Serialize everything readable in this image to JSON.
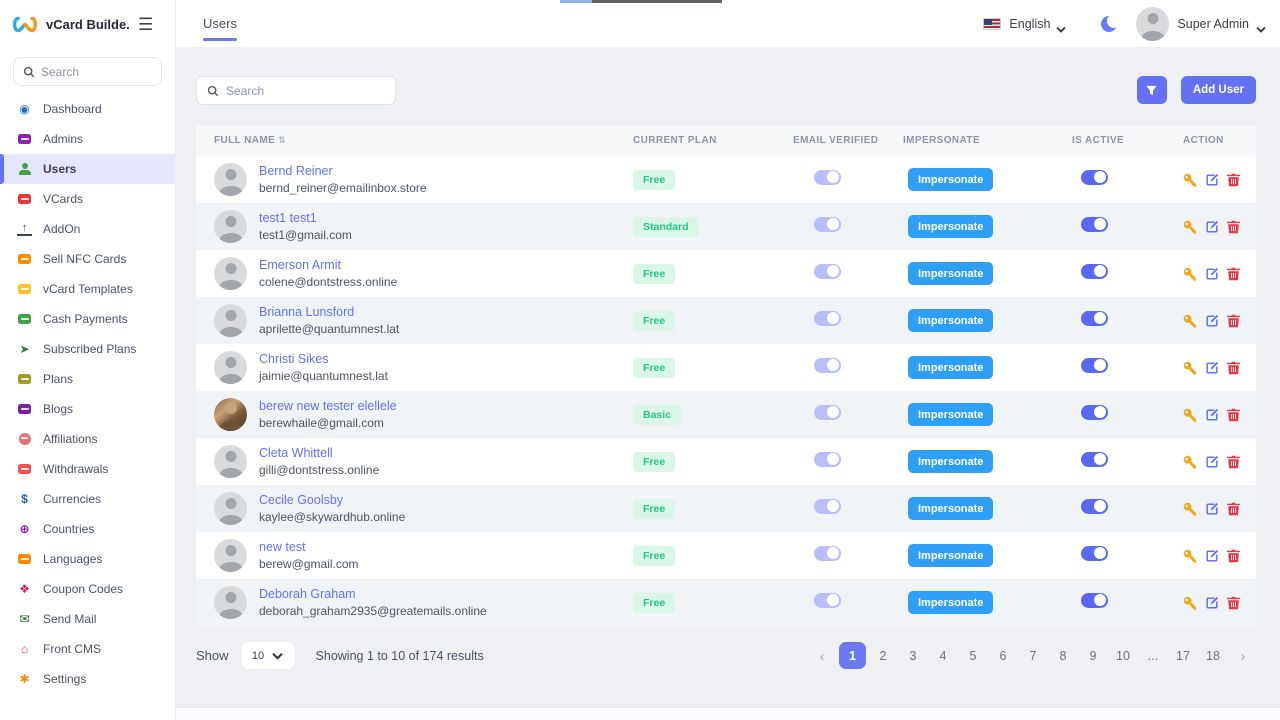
{
  "brand": {
    "title": "vCard Builde...",
    "logo": "infinity-logo"
  },
  "topnav": {
    "active_tab": "Users",
    "language": "English",
    "user_name": "Super Admin"
  },
  "sidebar": {
    "search_placeholder": "Search",
    "items": [
      {
        "label": "Dashboard",
        "icon": "dashboard-icon",
        "style": "glyph",
        "glyph": "◉",
        "color": "#1a6fc4",
        "active": false
      },
      {
        "label": "Admins",
        "icon": "admins-icon",
        "style": "chip",
        "glyph": "",
        "color": "#8e24aa",
        "active": false
      },
      {
        "label": "Users",
        "icon": "users-icon",
        "style": "person",
        "glyph": "",
        "color": "#43a047",
        "active": true
      },
      {
        "label": "VCards",
        "icon": "vcards-icon",
        "style": "chip",
        "glyph": "",
        "color": "#e53935",
        "active": false
      },
      {
        "label": "AddOn",
        "icon": "addon-icon",
        "style": "upload",
        "glyph": "↑",
        "color": "#37474f",
        "active": false
      },
      {
        "label": "Sell NFC Cards",
        "icon": "sell-nfc-cards-icon",
        "style": "chip",
        "glyph": "",
        "color": "#fb8c00",
        "active": false
      },
      {
        "label": "vCard Templates",
        "icon": "vcard-templates-icon",
        "style": "chip",
        "glyph": "",
        "color": "#f9c22e",
        "active": false
      },
      {
        "label": "Cash Payments",
        "icon": "cash-payments-icon",
        "style": "chip",
        "glyph": "",
        "color": "#43a047",
        "active": false
      },
      {
        "label": "Subscribed Plans",
        "icon": "subscribed-plans-icon",
        "style": "glyph",
        "glyph": "➤",
        "color": "#2e7d32",
        "active": false
      },
      {
        "label": "Plans",
        "icon": "plans-icon",
        "style": "chip",
        "glyph": "",
        "color": "#9e9d24",
        "active": false
      },
      {
        "label": "Blogs",
        "icon": "blogs-icon",
        "style": "chip",
        "glyph": "",
        "color": "#7b1fa2",
        "active": false
      },
      {
        "label": "Affiliations",
        "icon": "affiliations-icon",
        "style": "chip-round",
        "glyph": "",
        "color": "#e57373",
        "active": false
      },
      {
        "label": "Withdrawals",
        "icon": "withdrawals-icon",
        "style": "chip",
        "glyph": "",
        "color": "#ef5350",
        "active": false
      },
      {
        "label": "Currencies",
        "icon": "currencies-icon",
        "style": "glyph",
        "glyph": "$",
        "color": "#1565c0",
        "active": false
      },
      {
        "label": "Countries",
        "icon": "countries-icon",
        "style": "glyph",
        "glyph": "⊕",
        "color": "#7b1fa2",
        "active": false
      },
      {
        "label": "Languages",
        "icon": "languages-icon",
        "style": "chip",
        "glyph": "",
        "color": "#fb8c00",
        "active": false
      },
      {
        "label": "Coupon Codes",
        "icon": "coupon-codes-icon",
        "style": "glyph",
        "glyph": "❖",
        "color": "#d81b60",
        "active": false
      },
      {
        "label": "Send Mail",
        "icon": "send-mail-icon",
        "style": "glyph",
        "glyph": "✉",
        "color": "#1b5e20",
        "active": false
      },
      {
        "label": "Front CMS",
        "icon": "front-cms-icon",
        "style": "glyph",
        "glyph": "⌂",
        "color": "#e53935",
        "active": false
      },
      {
        "label": "Settings",
        "icon": "settings-icon",
        "style": "glyph",
        "glyph": "✱",
        "color": "#fb8c00",
        "active": false
      }
    ]
  },
  "toolbar": {
    "search_placeholder": "Search",
    "add_user_label": "Add User"
  },
  "table": {
    "columns": [
      "FULL NAME",
      "CURRENT PLAN",
      "EMAIL VERIFIED",
      "IMPERSONATE",
      "IS ACTIVE",
      "ACTION"
    ],
    "sort_glyph": "⇅",
    "impersonate_label": "Impersonate",
    "rows": [
      {
        "full_name": "Bernd Reiner",
        "email": "bernd_reiner@emailinbox.store",
        "plan": "Free",
        "email_verified": true,
        "is_active": true,
        "avatar": "placeholder"
      },
      {
        "full_name": "test1 test1",
        "email": "test1@gmail.com",
        "plan": "Standard",
        "email_verified": true,
        "is_active": true,
        "avatar": "placeholder"
      },
      {
        "full_name": "Emerson Armit",
        "email": "colene@dontstress.online",
        "plan": "Free",
        "email_verified": true,
        "is_active": true,
        "avatar": "placeholder"
      },
      {
        "full_name": "Brianna Lunsford",
        "email": "aprilette@quantumnest.lat",
        "plan": "Free",
        "email_verified": true,
        "is_active": true,
        "avatar": "placeholder"
      },
      {
        "full_name": "Christi Sikes",
        "email": "jaimie@quantumnest.lat",
        "plan": "Free",
        "email_verified": true,
        "is_active": true,
        "avatar": "placeholder"
      },
      {
        "full_name": "berew new tester elellele",
        "email": "berewhaile@gmail.com",
        "plan": "Basic",
        "email_verified": true,
        "is_active": true,
        "avatar": "photo"
      },
      {
        "full_name": "Cleta Whittell",
        "email": "gilli@dontstress.online",
        "plan": "Free",
        "email_verified": true,
        "is_active": true,
        "avatar": "placeholder"
      },
      {
        "full_name": "Cecile Goolsby",
        "email": "kaylee@skywardhub.online",
        "plan": "Free",
        "email_verified": true,
        "is_active": true,
        "avatar": "placeholder"
      },
      {
        "full_name": "new test",
        "email": "berew@gmail.com",
        "plan": "Free",
        "email_verified": true,
        "is_active": true,
        "avatar": "placeholder"
      },
      {
        "full_name": "Deborah Graham",
        "email": "deborah_graham2935@greatemails.online",
        "plan": "Free",
        "email_verified": true,
        "is_active": true,
        "avatar": "placeholder"
      }
    ]
  },
  "footer": {
    "show_label": "Show",
    "page_size": "10",
    "summary": "Showing 1 to 10 of 174 results",
    "prev": "‹",
    "next": "›",
    "pages": [
      "1",
      "2",
      "3",
      "4",
      "5",
      "6",
      "7",
      "8",
      "9",
      "10",
      "...",
      "17",
      "18"
    ],
    "active_page": "1"
  },
  "colors": {
    "primary": "#6571f3",
    "impersonate_blue": "#2f9ff5",
    "badge_bg": "#d9f6e7",
    "badge_text": "#27c287",
    "key_orange": "#f0a818",
    "delete_red": "#e8374a"
  }
}
